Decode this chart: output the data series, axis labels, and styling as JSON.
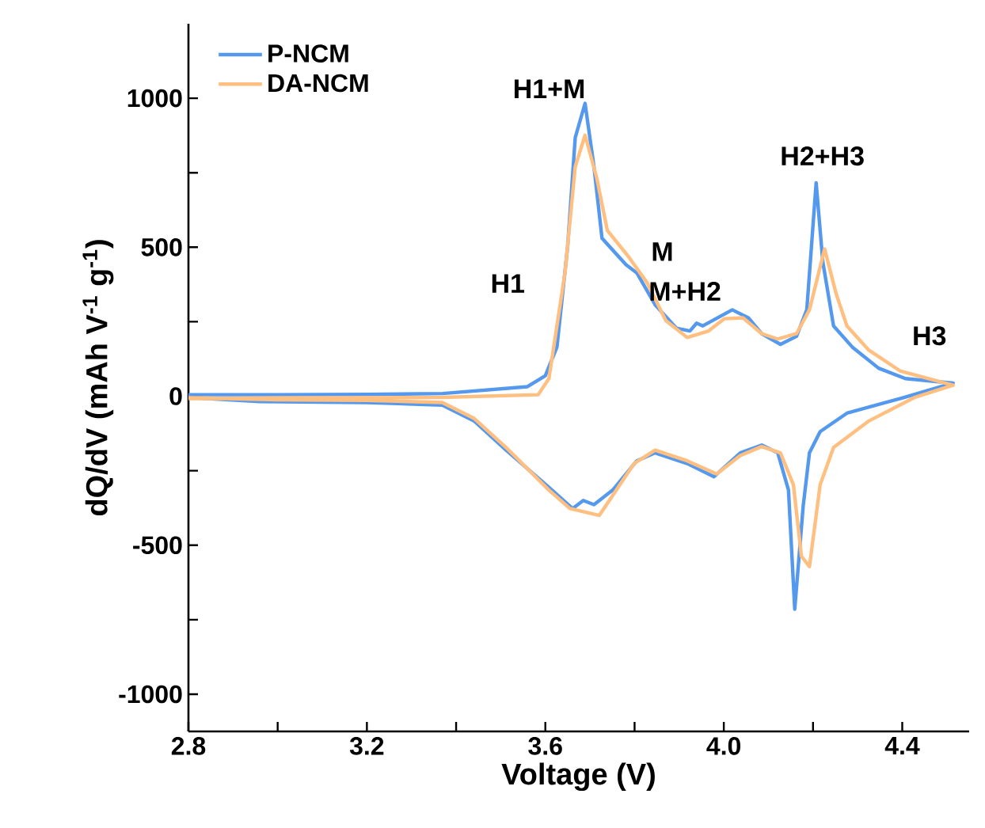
{
  "chart_data": {
    "type": "line",
    "xlabel": "Voltage (V)",
    "ylabel": "dQ/dV (mAh V$^{-1}$ g$^{-1}$)",
    "xlim": [
      2.8,
      4.55
    ],
    "ylim": [
      -1125,
      1250
    ],
    "xticks": [
      {
        "value": 2.8,
        "label": "2.8"
      },
      {
        "value": 3.0,
        "label": null
      },
      {
        "value": 3.2,
        "label": "3.2"
      },
      {
        "value": 3.4,
        "label": null
      },
      {
        "value": 3.6,
        "label": "3.6"
      },
      {
        "value": 3.8,
        "label": null
      },
      {
        "value": 4.0,
        "label": "4.0"
      },
      {
        "value": 4.2,
        "label": null
      },
      {
        "value": 4.4,
        "label": "4.4"
      }
    ],
    "yticks": [
      {
        "value": -1000,
        "label": "-1000"
      },
      {
        "value": -750,
        "label": null
      },
      {
        "value": -500,
        "label": "-500"
      },
      {
        "value": -250,
        "label": null
      },
      {
        "value": 0,
        "label": "0"
      },
      {
        "value": 250,
        "label": null
      },
      {
        "value": 500,
        "label": "500"
      },
      {
        "value": 750,
        "label": null
      },
      {
        "value": 1000,
        "label": "1000"
      }
    ],
    "legend": "top left",
    "series": [
      {
        "name": "P-NCM",
        "color": "#5599ee",
        "x": [
          2.8,
          3.0,
          3.2,
          3.37,
          3.56,
          3.6,
          3.626,
          3.65,
          3.667,
          3.689,
          3.709,
          3.727,
          3.781,
          3.805,
          3.846,
          3.894,
          3.924,
          3.939,
          3.953,
          4.019,
          4.055,
          4.085,
          4.127,
          4.163,
          4.186,
          4.207,
          4.222,
          4.246,
          4.288,
          4.347,
          4.407,
          4.514,
          4.404,
          4.276,
          4.216,
          4.192,
          4.178,
          4.159,
          4.145,
          4.121,
          4.085,
          4.037,
          3.978,
          3.918,
          3.846,
          3.805,
          3.751,
          3.709,
          3.685,
          3.661,
          3.608,
          3.512,
          3.441,
          3.369,
          3.2,
          2.96,
          2.8
        ],
        "values": [
          5,
          5,
          6,
          9,
          32,
          69,
          165,
          503,
          868,
          983,
          770,
          530,
          441,
          414,
          307,
          228,
          219,
          245,
          236,
          290,
          263,
          210,
          174,
          201,
          290,
          716,
          450,
          236,
          165,
          94,
          59,
          44,
          -4,
          -57,
          -119,
          -190,
          -368,
          -715,
          -315,
          -190,
          -164,
          -190,
          -270,
          -226,
          -190,
          -217,
          -315,
          -364,
          -350,
          -377,
          -306,
          -181,
          -84,
          -30,
          -21,
          -18,
          -4
        ]
      },
      {
        "name": "DA-NCM",
        "color": "#ffbf80",
        "x": [
          2.8,
          3.0,
          3.2,
          3.369,
          3.584,
          3.608,
          3.644,
          3.667,
          3.689,
          3.715,
          3.739,
          3.787,
          3.829,
          3.87,
          3.918,
          3.966,
          4.001,
          4.043,
          4.085,
          4.121,
          4.163,
          4.192,
          4.226,
          4.252,
          4.276,
          4.324,
          4.395,
          4.514,
          4.428,
          4.324,
          4.246,
          4.216,
          4.192,
          4.174,
          4.156,
          4.127,
          4.085,
          4.037,
          3.984,
          3.918,
          3.846,
          3.799,
          3.721,
          3.655,
          3.608,
          3.512,
          3.441,
          3.369,
          3.2,
          3.0,
          2.8
        ],
        "values": [
          -8,
          -6,
          -5,
          -4,
          5,
          59,
          414,
          770,
          876,
          734,
          556,
          467,
          379,
          254,
          197,
          219,
          260,
          263,
          210,
          192,
          210,
          290,
          494,
          343,
          236,
          156,
          85,
          37,
          -4,
          -84,
          -172,
          -297,
          -572,
          -537,
          -297,
          -190,
          -169,
          -199,
          -261,
          -217,
          -181,
          -226,
          -400,
          -377,
          -315,
          -172,
          -75,
          -21,
          -14,
          -12,
          -5
        ]
      }
    ],
    "annotations": [
      "H1",
      "H1+M",
      "M",
      "M+H2",
      "H2+H3",
      "H3"
    ]
  }
}
